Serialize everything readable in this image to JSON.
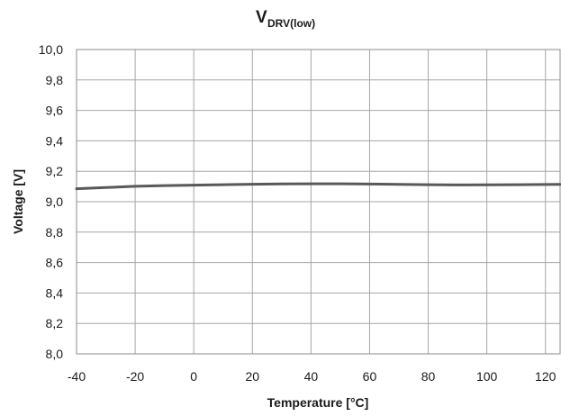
{
  "chart_data": {
    "type": "line",
    "title": {
      "main": "V",
      "subscript": "DRV(low)"
    },
    "xlabel": "Temperature [°C]",
    "ylabel": "Voltage [V]",
    "xlim": [
      -40,
      125
    ],
    "ylim": [
      8.0,
      10.0
    ],
    "x_ticks": [
      "-40",
      "-20",
      "0",
      "20",
      "40",
      "60",
      "80",
      "100",
      "120"
    ],
    "y_ticks": [
      "10,0",
      "9,8",
      "9,6",
      "9,4",
      "9,2",
      "9,0",
      "8,8",
      "8,6",
      "8,4",
      "8,2",
      "8,0"
    ],
    "grid": true,
    "legend": "none",
    "series": [
      {
        "color": "#595959",
        "x": [
          -40,
          -30,
          -20,
          -10,
          0,
          10,
          20,
          30,
          40,
          50,
          60,
          70,
          80,
          90,
          100,
          110,
          125
        ],
        "y": [
          9.085,
          9.093,
          9.101,
          9.106,
          9.109,
          9.112,
          9.115,
          9.117,
          9.118,
          9.118,
          9.116,
          9.114,
          9.112,
          9.11,
          9.111,
          9.112,
          9.114
        ]
      }
    ]
  }
}
